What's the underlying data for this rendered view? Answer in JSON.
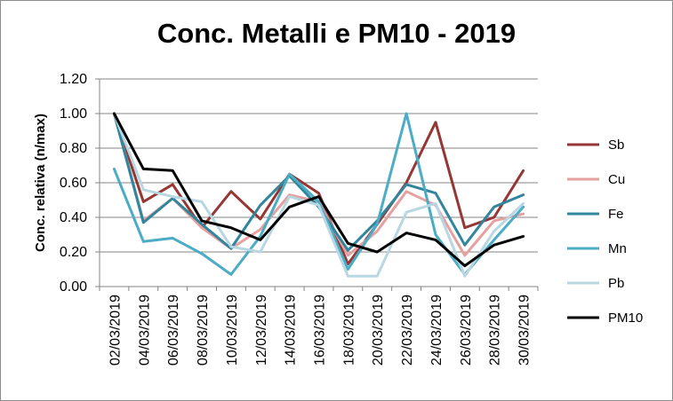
{
  "chart_data": {
    "type": "line",
    "title": "Conc. Metalli e PM10 - 2019",
    "xlabel": "",
    "ylabel": "Conc. relativa  (n/max)",
    "ylim": [
      0,
      1.2
    ],
    "yticks": [
      "0.00",
      "0.20",
      "0.40",
      "0.60",
      "0.80",
      "1.00",
      "1.20"
    ],
    "categories": [
      "02/03/2019",
      "04/03/2019",
      "06/03/2019",
      "08/03/2019",
      "10/03/2019",
      "12/03/2019",
      "14/03/2019",
      "16/03/2019",
      "18/03/2019",
      "20/03/2019",
      "22/03/2019",
      "24/03/2019",
      "26/03/2019",
      "28/03/2019",
      "30/03/2019"
    ],
    "grid": true,
    "legend_position": "right",
    "series": [
      {
        "name": "Sb",
        "color": "#953735",
        "values": [
          1.0,
          0.49,
          0.59,
          0.34,
          0.55,
          0.39,
          0.65,
          0.54,
          0.13,
          0.36,
          0.6,
          0.95,
          0.34,
          0.4,
          0.67
        ]
      },
      {
        "name": "Cu",
        "color": "#e6a0a0",
        "values": [
          1.0,
          0.38,
          0.51,
          0.34,
          0.22,
          0.33,
          0.53,
          0.49,
          0.18,
          0.32,
          0.55,
          0.47,
          0.18,
          0.38,
          0.42
        ]
      },
      {
        "name": "Fe",
        "color": "#31859c",
        "values": [
          1.0,
          0.37,
          0.51,
          0.36,
          0.22,
          0.47,
          0.64,
          0.46,
          0.21,
          0.38,
          0.59,
          0.54,
          0.24,
          0.46,
          0.53
        ]
      },
      {
        "name": "Mn",
        "color": "#4bacc6",
        "values": [
          0.68,
          0.26,
          0.28,
          0.19,
          0.07,
          0.29,
          0.65,
          0.49,
          0.1,
          0.36,
          1.0,
          0.3,
          0.07,
          0.27,
          0.46
        ]
      },
      {
        "name": "Pb",
        "color": "#b7d7e3",
        "values": [
          1.0,
          0.56,
          0.52,
          0.49,
          0.23,
          0.2,
          0.52,
          0.47,
          0.06,
          0.06,
          0.43,
          0.48,
          0.06,
          0.32,
          0.48
        ]
      },
      {
        "name": "PM10",
        "color": "#000000",
        "values": [
          1.0,
          0.68,
          0.67,
          0.38,
          0.34,
          0.27,
          0.46,
          0.52,
          0.25,
          0.2,
          0.31,
          0.27,
          0.12,
          0.24,
          0.29
        ]
      }
    ]
  }
}
